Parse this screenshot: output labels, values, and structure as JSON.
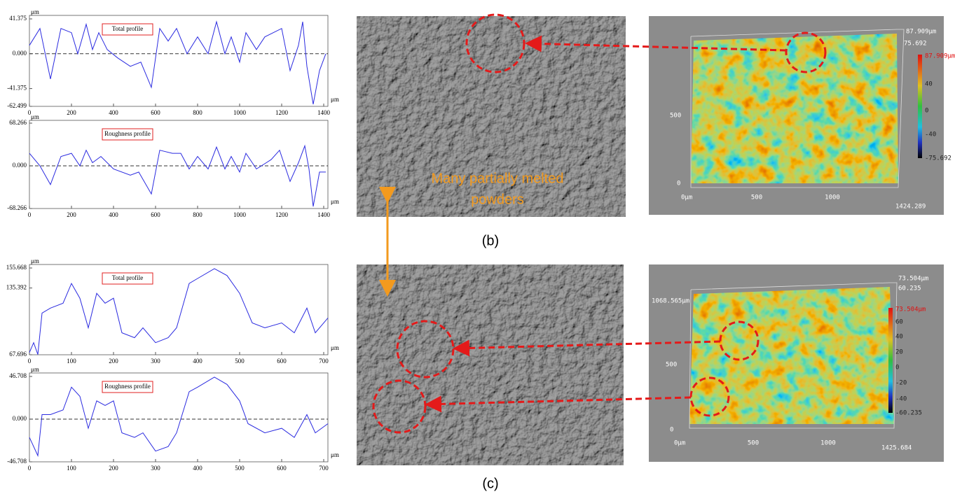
{
  "chart_data": [
    {
      "type": "line",
      "xlabel": "μm",
      "ylabel": "μm",
      "xlim": [
        0,
        1420
      ],
      "xticks": [
        0,
        200,
        400,
        600,
        800,
        1000,
        1200,
        1400
      ],
      "ylim": [
        -62.499,
        41.375
      ],
      "yticks": [
        41.375,
        {
          "value": 0,
          "label": "0.000"
        },
        -41.375,
        -62.499
      ],
      "hline": 0,
      "x": [
        0,
        50,
        100,
        150,
        200,
        230,
        270,
        300,
        330,
        370,
        420,
        480,
        530,
        580,
        620,
        660,
        700,
        750,
        800,
        850,
        890,
        930,
        960,
        1000,
        1030,
        1080,
        1120,
        1200,
        1240,
        1280,
        1300,
        1320,
        1350,
        1380,
        1410
      ],
      "series": [
        {
          "name": "Total profile",
          "color": "#2b2be0",
          "values": [
            10,
            30,
            -30,
            30,
            25,
            0,
            35,
            5,
            25,
            5,
            -5,
            -15,
            -10,
            -40,
            30,
            15,
            30,
            0,
            20,
            0,
            38,
            0,
            20,
            -10,
            25,
            5,
            20,
            30,
            -20,
            10,
            38,
            -15,
            -60,
            -20,
            0
          ]
        }
      ]
    },
    {
      "type": "line",
      "xlabel": "μm",
      "ylabel": "μm",
      "xlim": [
        0,
        1420
      ],
      "xticks": [
        0,
        200,
        400,
        600,
        800,
        1000,
        1200,
        1400
      ],
      "ylim": [
        -68.266,
        68.266
      ],
      "yticks": [
        68.266,
        {
          "value": 0,
          "label": "0.000"
        },
        -68.266
      ],
      "hline": 0,
      "x": [
        0,
        50,
        100,
        150,
        200,
        240,
        270,
        300,
        340,
        400,
        480,
        520,
        580,
        620,
        680,
        720,
        760,
        800,
        850,
        890,
        930,
        960,
        1000,
        1030,
        1080,
        1150,
        1190,
        1240,
        1280,
        1310,
        1330,
        1350,
        1380,
        1410
      ],
      "series": [
        {
          "name": "Roughness profile",
          "color": "#2b2be0",
          "values": [
            20,
            0,
            -30,
            15,
            20,
            0,
            25,
            5,
            15,
            -5,
            -15,
            -10,
            -45,
            25,
            20,
            20,
            -5,
            15,
            -5,
            30,
            -5,
            15,
            -10,
            20,
            -5,
            10,
            25,
            -25,
            5,
            32,
            -5,
            -65,
            -10,
            -10
          ]
        }
      ]
    },
    {
      "type": "line",
      "xlabel": "μm",
      "ylabel": "μm",
      "xlim": [
        0,
        710
      ],
      "xticks": [
        0,
        100,
        200,
        300,
        400,
        500,
        600,
        700
      ],
      "ylim": [
        67.696,
        155.668
      ],
      "yticks": [
        155.668,
        135.392,
        67.696
      ],
      "x": [
        0,
        10,
        20,
        30,
        50,
        80,
        100,
        120,
        140,
        160,
        180,
        200,
        220,
        250,
        270,
        300,
        330,
        350,
        380,
        400,
        440,
        470,
        500,
        530,
        560,
        600,
        630,
        660,
        680,
        710
      ],
      "series": [
        {
          "name": "Total profile",
          "color": "#2b2be0",
          "values": [
            70,
            80,
            68,
            110,
            115,
            120,
            140,
            125,
            95,
            130,
            120,
            125,
            90,
            85,
            95,
            80,
            85,
            95,
            140,
            145,
            155,
            148,
            130,
            100,
            95,
            100,
            90,
            115,
            90,
            105
          ]
        }
      ]
    },
    {
      "type": "line",
      "xlabel": "μm",
      "ylabel": "μm",
      "xlim": [
        0,
        710
      ],
      "xticks": [
        0,
        100,
        200,
        300,
        400,
        500,
        600,
        700
      ],
      "ylim": [
        -46.708,
        46.708
      ],
      "yticks": [
        46.708,
        {
          "value": 0,
          "label": "0.000"
        },
        -46.708
      ],
      "hline": 0,
      "x": [
        0,
        20,
        30,
        50,
        80,
        100,
        120,
        140,
        160,
        180,
        200,
        220,
        250,
        270,
        300,
        330,
        350,
        380,
        400,
        440,
        470,
        500,
        520,
        560,
        600,
        630,
        660,
        680,
        710
      ],
      "series": [
        {
          "name": "Roughness profile",
          "color": "#2b2be0",
          "values": [
            -20,
            -40,
            5,
            5,
            10,
            35,
            25,
            -10,
            20,
            15,
            20,
            -15,
            -20,
            -15,
            -35,
            -30,
            -15,
            30,
            35,
            46,
            38,
            20,
            -5,
            -15,
            -10,
            -20,
            5,
            -15,
            -5
          ]
        }
      ]
    }
  ],
  "annotation": {
    "line1": "Many partially melted",
    "line2": "powders"
  },
  "panel_labels": [
    "(b)",
    "(c)"
  ],
  "surface_maps": [
    {
      "z_top": "87.909μm",
      "z_mid": "75.692",
      "x_end": "1424.289",
      "x0": "0μm",
      "x500": "500",
      "x1000": "1000",
      "y0": "0",
      "y500": "500",
      "colorbar": [
        "87.909μm",
        "40",
        "0",
        "-40",
        "-75.692"
      ]
    },
    {
      "z_top": "73.504μm",
      "z_mid": "60.235",
      "y_end": "1068.565μm",
      "x_end": "1425.684",
      "x0": "0μm",
      "x500": "500",
      "x1000": "1000",
      "y0": "0",
      "y500": "500",
      "colorbar": [
        "73.504μm",
        "60",
        "40",
        "20",
        "0",
        "-20",
        "-40",
        "-60.235"
      ]
    }
  ]
}
